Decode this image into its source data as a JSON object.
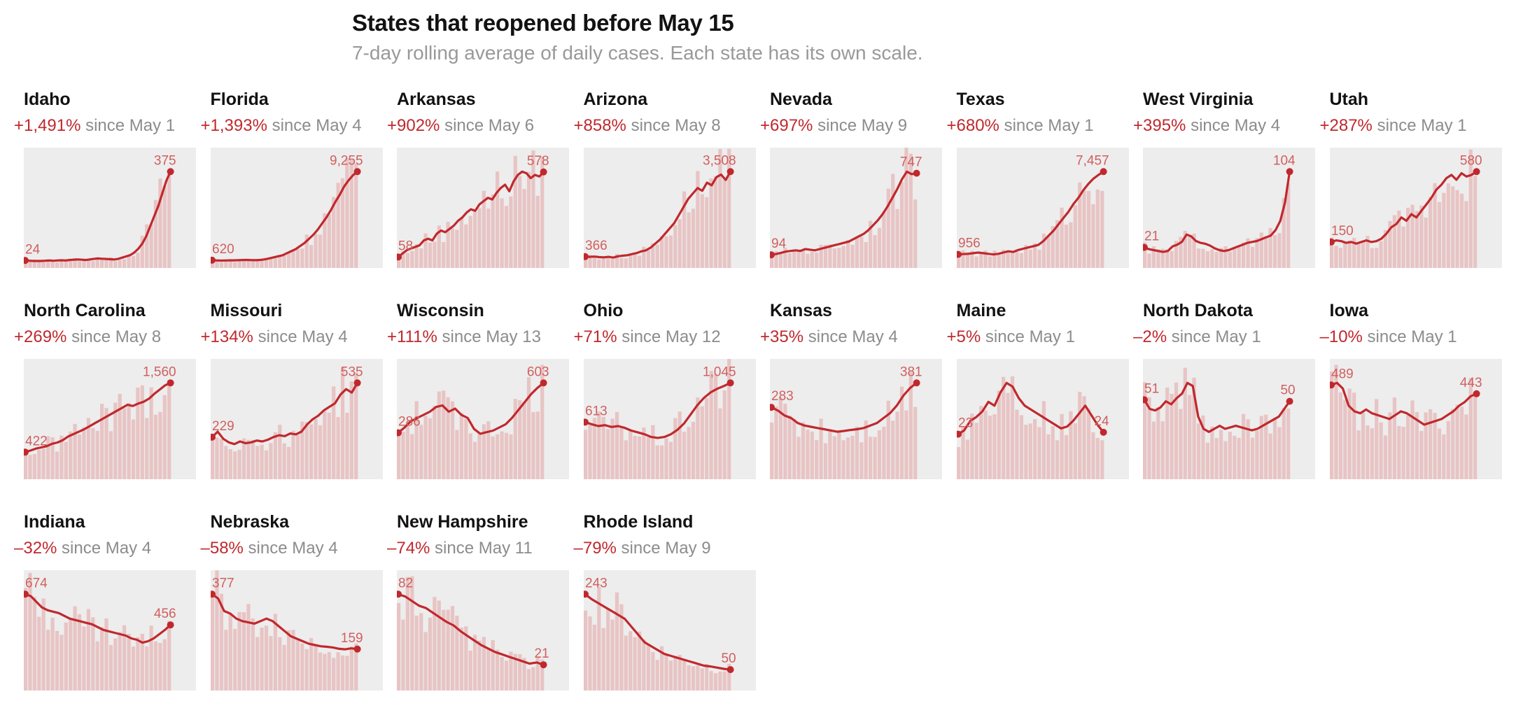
{
  "title": "States that reopened before May 15",
  "subtitle": "7-day rolling average of daily cases. Each state has its own scale.",
  "colors": {
    "line": "#c0282d",
    "bars": "#e8c4c4",
    "panel_bg": "#ededed",
    "label": "#d0605f",
    "subtitle": "#999999"
  },
  "chart_data": [
    {
      "type": "line",
      "state": "Idaho",
      "change": "+1,491%",
      "since": "since May 1",
      "start_value": 24,
      "end_value": 375,
      "start_label": "24",
      "end_label": "375",
      "values": [
        24,
        23,
        22,
        22,
        22,
        23,
        24,
        23,
        24,
        25,
        24,
        26,
        27,
        28,
        27,
        26,
        28,
        30,
        32,
        31,
        30,
        29,
        28,
        30,
        35,
        40,
        45,
        55,
        70,
        90,
        120,
        160,
        200,
        240,
        290,
        340,
        375
      ]
    },
    {
      "type": "line",
      "state": "Florida",
      "change": "+1,393%",
      "since": "since May 4",
      "start_value": 620,
      "end_value": 9255,
      "start_label": "620",
      "end_label": "9,255",
      "values": [
        620,
        600,
        580,
        590,
        600,
        610,
        620,
        640,
        650,
        630,
        620,
        650,
        700,
        800,
        900,
        1000,
        1100,
        1300,
        1500,
        1700,
        2000,
        2300,
        2700,
        3100,
        3600,
        4200,
        4800,
        5500,
        6300,
        7000,
        7800,
        8400,
        8900,
        9255
      ]
    },
    {
      "type": "line",
      "state": "Arkansas",
      "change": "+902%",
      "since": "since May 6",
      "start_value": 58,
      "end_value": 578,
      "start_label": "58",
      "end_label": "578",
      "values": [
        58,
        80,
        100,
        110,
        120,
        130,
        160,
        170,
        160,
        200,
        220,
        210,
        230,
        250,
        280,
        300,
        330,
        350,
        340,
        380,
        400,
        420,
        410,
        450,
        480,
        500,
        460,
        520,
        560,
        580,
        570,
        540,
        560,
        550,
        578
      ]
    },
    {
      "type": "line",
      "state": "Arizona",
      "change": "+858%",
      "since": "since May 8",
      "start_value": 366,
      "end_value": 3508,
      "start_label": "366",
      "end_label": "3,508",
      "values": [
        366,
        360,
        370,
        350,
        340,
        360,
        330,
        380,
        400,
        420,
        460,
        500,
        560,
        600,
        700,
        850,
        1000,
        1200,
        1400,
        1600,
        1900,
        2200,
        2500,
        2700,
        2900,
        2800,
        3100,
        3000,
        3300,
        3400,
        3200,
        3508
      ]
    },
    {
      "type": "line",
      "state": "Nevada",
      "change": "+697%",
      "since": "since May 9",
      "start_value": 94,
      "end_value": 747,
      "start_label": "94",
      "end_label": "747",
      "values": [
        94,
        100,
        110,
        120,
        125,
        130,
        125,
        140,
        135,
        130,
        140,
        150,
        160,
        170,
        180,
        190,
        200,
        220,
        240,
        260,
        290,
        330,
        370,
        420,
        480,
        550,
        620,
        700,
        760,
        740,
        747
      ]
    },
    {
      "type": "line",
      "state": "Texas",
      "change": "+680%",
      "since": "since May 1",
      "start_value": 956,
      "end_value": 7457,
      "start_label": "956",
      "end_label": "7,457",
      "values": [
        956,
        980,
        1000,
        1050,
        1100,
        1050,
        1000,
        950,
        1000,
        1100,
        1200,
        1150,
        1300,
        1400,
        1500,
        1600,
        1700,
        2000,
        2400,
        2800,
        3300,
        3800,
        4300,
        4900,
        5400,
        6000,
        6500,
        6900,
        7200,
        7457
      ]
    },
    {
      "type": "line",
      "state": "West Virginia",
      "change": "+395%",
      "since": "since May 4",
      "start_value": 21,
      "end_value": 104,
      "start_label": "21",
      "end_label": "104",
      "values": [
        21,
        19,
        18,
        17,
        16,
        17,
        22,
        24,
        27,
        35,
        33,
        28,
        26,
        25,
        23,
        20,
        18,
        17,
        18,
        20,
        22,
        24,
        26,
        27,
        28,
        30,
        32,
        34,
        40,
        50,
        70,
        104
      ]
    },
    {
      "type": "line",
      "state": "Utah",
      "change": "+287%",
      "since": "since May 1",
      "start_value": 150,
      "end_value": 580,
      "start_label": "150",
      "end_label": "580",
      "values": [
        150,
        160,
        155,
        145,
        150,
        140,
        150,
        160,
        150,
        155,
        170,
        200,
        240,
        260,
        300,
        280,
        320,
        300,
        340,
        380,
        420,
        470,
        500,
        540,
        560,
        530,
        570,
        550,
        560,
        580
      ]
    },
    {
      "type": "line",
      "state": "North Carolina",
      "change": "+269%",
      "since": "since May 8",
      "start_value": 422,
      "end_value": 1560,
      "start_label": "422",
      "end_label": "1,560",
      "values": [
        422,
        450,
        480,
        500,
        520,
        560,
        580,
        620,
        680,
        720,
        760,
        800,
        850,
        900,
        950,
        1000,
        1050,
        1100,
        1150,
        1200,
        1180,
        1220,
        1250,
        1300,
        1380,
        1450,
        1520,
        1560
      ]
    },
    {
      "type": "line",
      "state": "Missouri",
      "change": "+134%",
      "since": "since May 4",
      "start_value": 229,
      "end_value": 535,
      "start_label": "229",
      "end_label": "535",
      "values": [
        229,
        260,
        220,
        200,
        190,
        205,
        195,
        200,
        210,
        205,
        215,
        230,
        240,
        235,
        250,
        245,
        260,
        300,
        330,
        350,
        380,
        400,
        420,
        470,
        500,
        480,
        535
      ]
    },
    {
      "type": "line",
      "state": "Wisconsin",
      "change": "+111%",
      "since": "since May 13",
      "start_value": 286,
      "end_value": 603,
      "start_label": "286",
      "end_label": "603",
      "values": [
        286,
        320,
        360,
        380,
        400,
        420,
        450,
        460,
        420,
        440,
        400,
        380,
        310,
        280,
        290,
        300,
        320,
        340,
        380,
        430,
        480,
        530,
        570,
        603
      ]
    },
    {
      "type": "line",
      "state": "Ohio",
      "change": "+71%",
      "since": "since May 12",
      "start_value": 613,
      "end_value": 1045,
      "start_label": "613",
      "end_label": "1,045",
      "values": [
        613,
        590,
        570,
        580,
        560,
        570,
        550,
        520,
        500,
        480,
        450,
        440,
        450,
        480,
        530,
        600,
        700,
        800,
        880,
        940,
        980,
        1010,
        1045
      ]
    },
    {
      "type": "line",
      "state": "Kansas",
      "change": "+35%",
      "since": "since May 4",
      "start_value": 283,
      "end_value": 381,
      "start_label": "283",
      "end_label": "381",
      "values": [
        283,
        270,
        250,
        240,
        220,
        210,
        205,
        200,
        195,
        190,
        185,
        188,
        192,
        195,
        200,
        210,
        220,
        240,
        260,
        290,
        330,
        360,
        381
      ]
    },
    {
      "type": "line",
      "state": "Maine",
      "change": "+5%",
      "since": "since May 1",
      "start_value": 23,
      "end_value": 24,
      "start_label": "23",
      "end_label": "24",
      "values": [
        23,
        25,
        30,
        32,
        35,
        40,
        38,
        45,
        50,
        48,
        42,
        38,
        36,
        34,
        32,
        30,
        28,
        26,
        27,
        30,
        34,
        38,
        33,
        28,
        24
      ]
    },
    {
      "type": "line",
      "state": "North Dakota",
      "change": "–2%",
      "since": "since May 1",
      "start_value": 51,
      "end_value": 50,
      "start_label": "51",
      "end_label": "50",
      "values": [
        51,
        45,
        44,
        46,
        50,
        48,
        52,
        55,
        62,
        60,
        40,
        32,
        30,
        32,
        34,
        32,
        33,
        34,
        33,
        32,
        31,
        32,
        34,
        36,
        38,
        40,
        45,
        50
      ]
    },
    {
      "type": "line",
      "state": "Iowa",
      "change": "–10%",
      "since": "since May 1",
      "start_value": 489,
      "end_value": 443,
      "start_label": "489",
      "end_label": "443",
      "values": [
        489,
        500,
        470,
        380,
        350,
        340,
        360,
        340,
        330,
        320,
        310,
        330,
        350,
        340,
        320,
        300,
        280,
        290,
        300,
        310,
        330,
        350,
        380,
        400,
        430,
        443
      ]
    },
    {
      "type": "line",
      "state": "Indiana",
      "change": "–32%",
      "since": "since May 4",
      "start_value": 674,
      "end_value": 456,
      "start_label": "674",
      "end_label": "456",
      "values": [
        674,
        660,
        620,
        580,
        560,
        550,
        540,
        520,
        500,
        490,
        480,
        470,
        460,
        440,
        420,
        410,
        400,
        390,
        380,
        360,
        350,
        330,
        340,
        360,
        390,
        420,
        456
      ]
    },
    {
      "type": "line",
      "state": "Nebraska",
      "change": "–58%",
      "since": "since May 4",
      "start_value": 377,
      "end_value": 159,
      "start_label": "377",
      "end_label": "159",
      "values": [
        377,
        360,
        310,
        300,
        280,
        270,
        265,
        260,
        270,
        280,
        270,
        250,
        230,
        210,
        200,
        190,
        180,
        175,
        170,
        168,
        165,
        160,
        158,
        162,
        159
      ]
    },
    {
      "type": "line",
      "state": "New Hampshire",
      "change": "–74%",
      "since": "since May 11",
      "start_value": 82,
      "end_value": 21,
      "start_label": "82",
      "end_label": "21",
      "values": [
        82,
        80,
        76,
        72,
        70,
        66,
        62,
        58,
        55,
        50,
        46,
        42,
        38,
        35,
        32,
        30,
        28,
        26,
        24,
        22,
        23,
        21
      ]
    },
    {
      "type": "line",
      "state": "Rhode Island",
      "change": "–79%",
      "since": "since May 9",
      "start_value": 243,
      "end_value": 50,
      "start_label": "243",
      "end_label": "50",
      "values": [
        243,
        230,
        220,
        210,
        200,
        190,
        180,
        160,
        140,
        120,
        110,
        100,
        90,
        85,
        80,
        75,
        70,
        65,
        60,
        58,
        55,
        52,
        50
      ]
    }
  ]
}
